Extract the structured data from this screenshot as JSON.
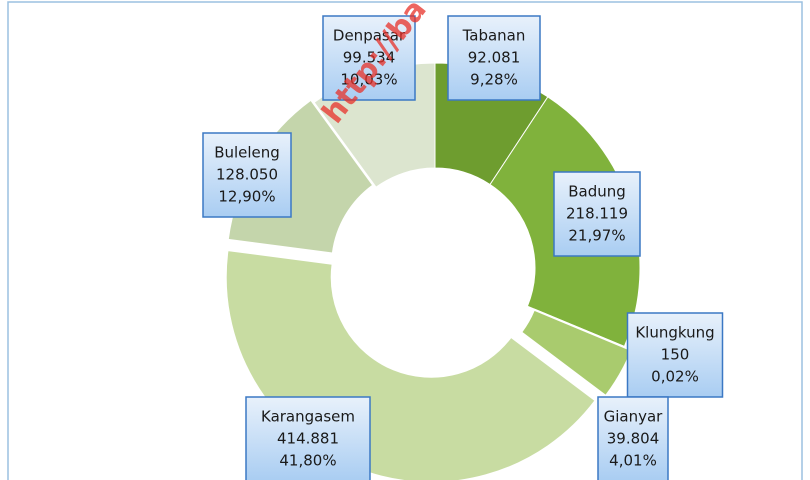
{
  "chart_data": {
    "type": "pie",
    "categories": [
      "Tabanan",
      "Badung",
      "Klungkung",
      "Gianyar",
      "Karangasem",
      "Buleleng",
      "Denpasar"
    ],
    "values": [
      92081,
      218119,
      150,
      39804,
      414881,
      128050,
      99534
    ],
    "value_labels": [
      "92.081",
      "218.119",
      "150",
      "39.804",
      "414.881",
      "128.050",
      "99.534"
    ],
    "percentages": [
      9.28,
      21.97,
      0.02,
      4.01,
      41.8,
      12.9,
      10.03
    ],
    "percent_labels": [
      "9,28%",
      "21,97%",
      "0,02%",
      "4,01%",
      "41,80%",
      "12,90%",
      "10,03%"
    ],
    "colors": [
      "#6e9d2f",
      "#80b23c",
      "#92c24c",
      "#a9cb6e",
      "#c8dca2",
      "#c4d5ab",
      "#dce5cf"
    ],
    "watermark": "http://ba"
  }
}
